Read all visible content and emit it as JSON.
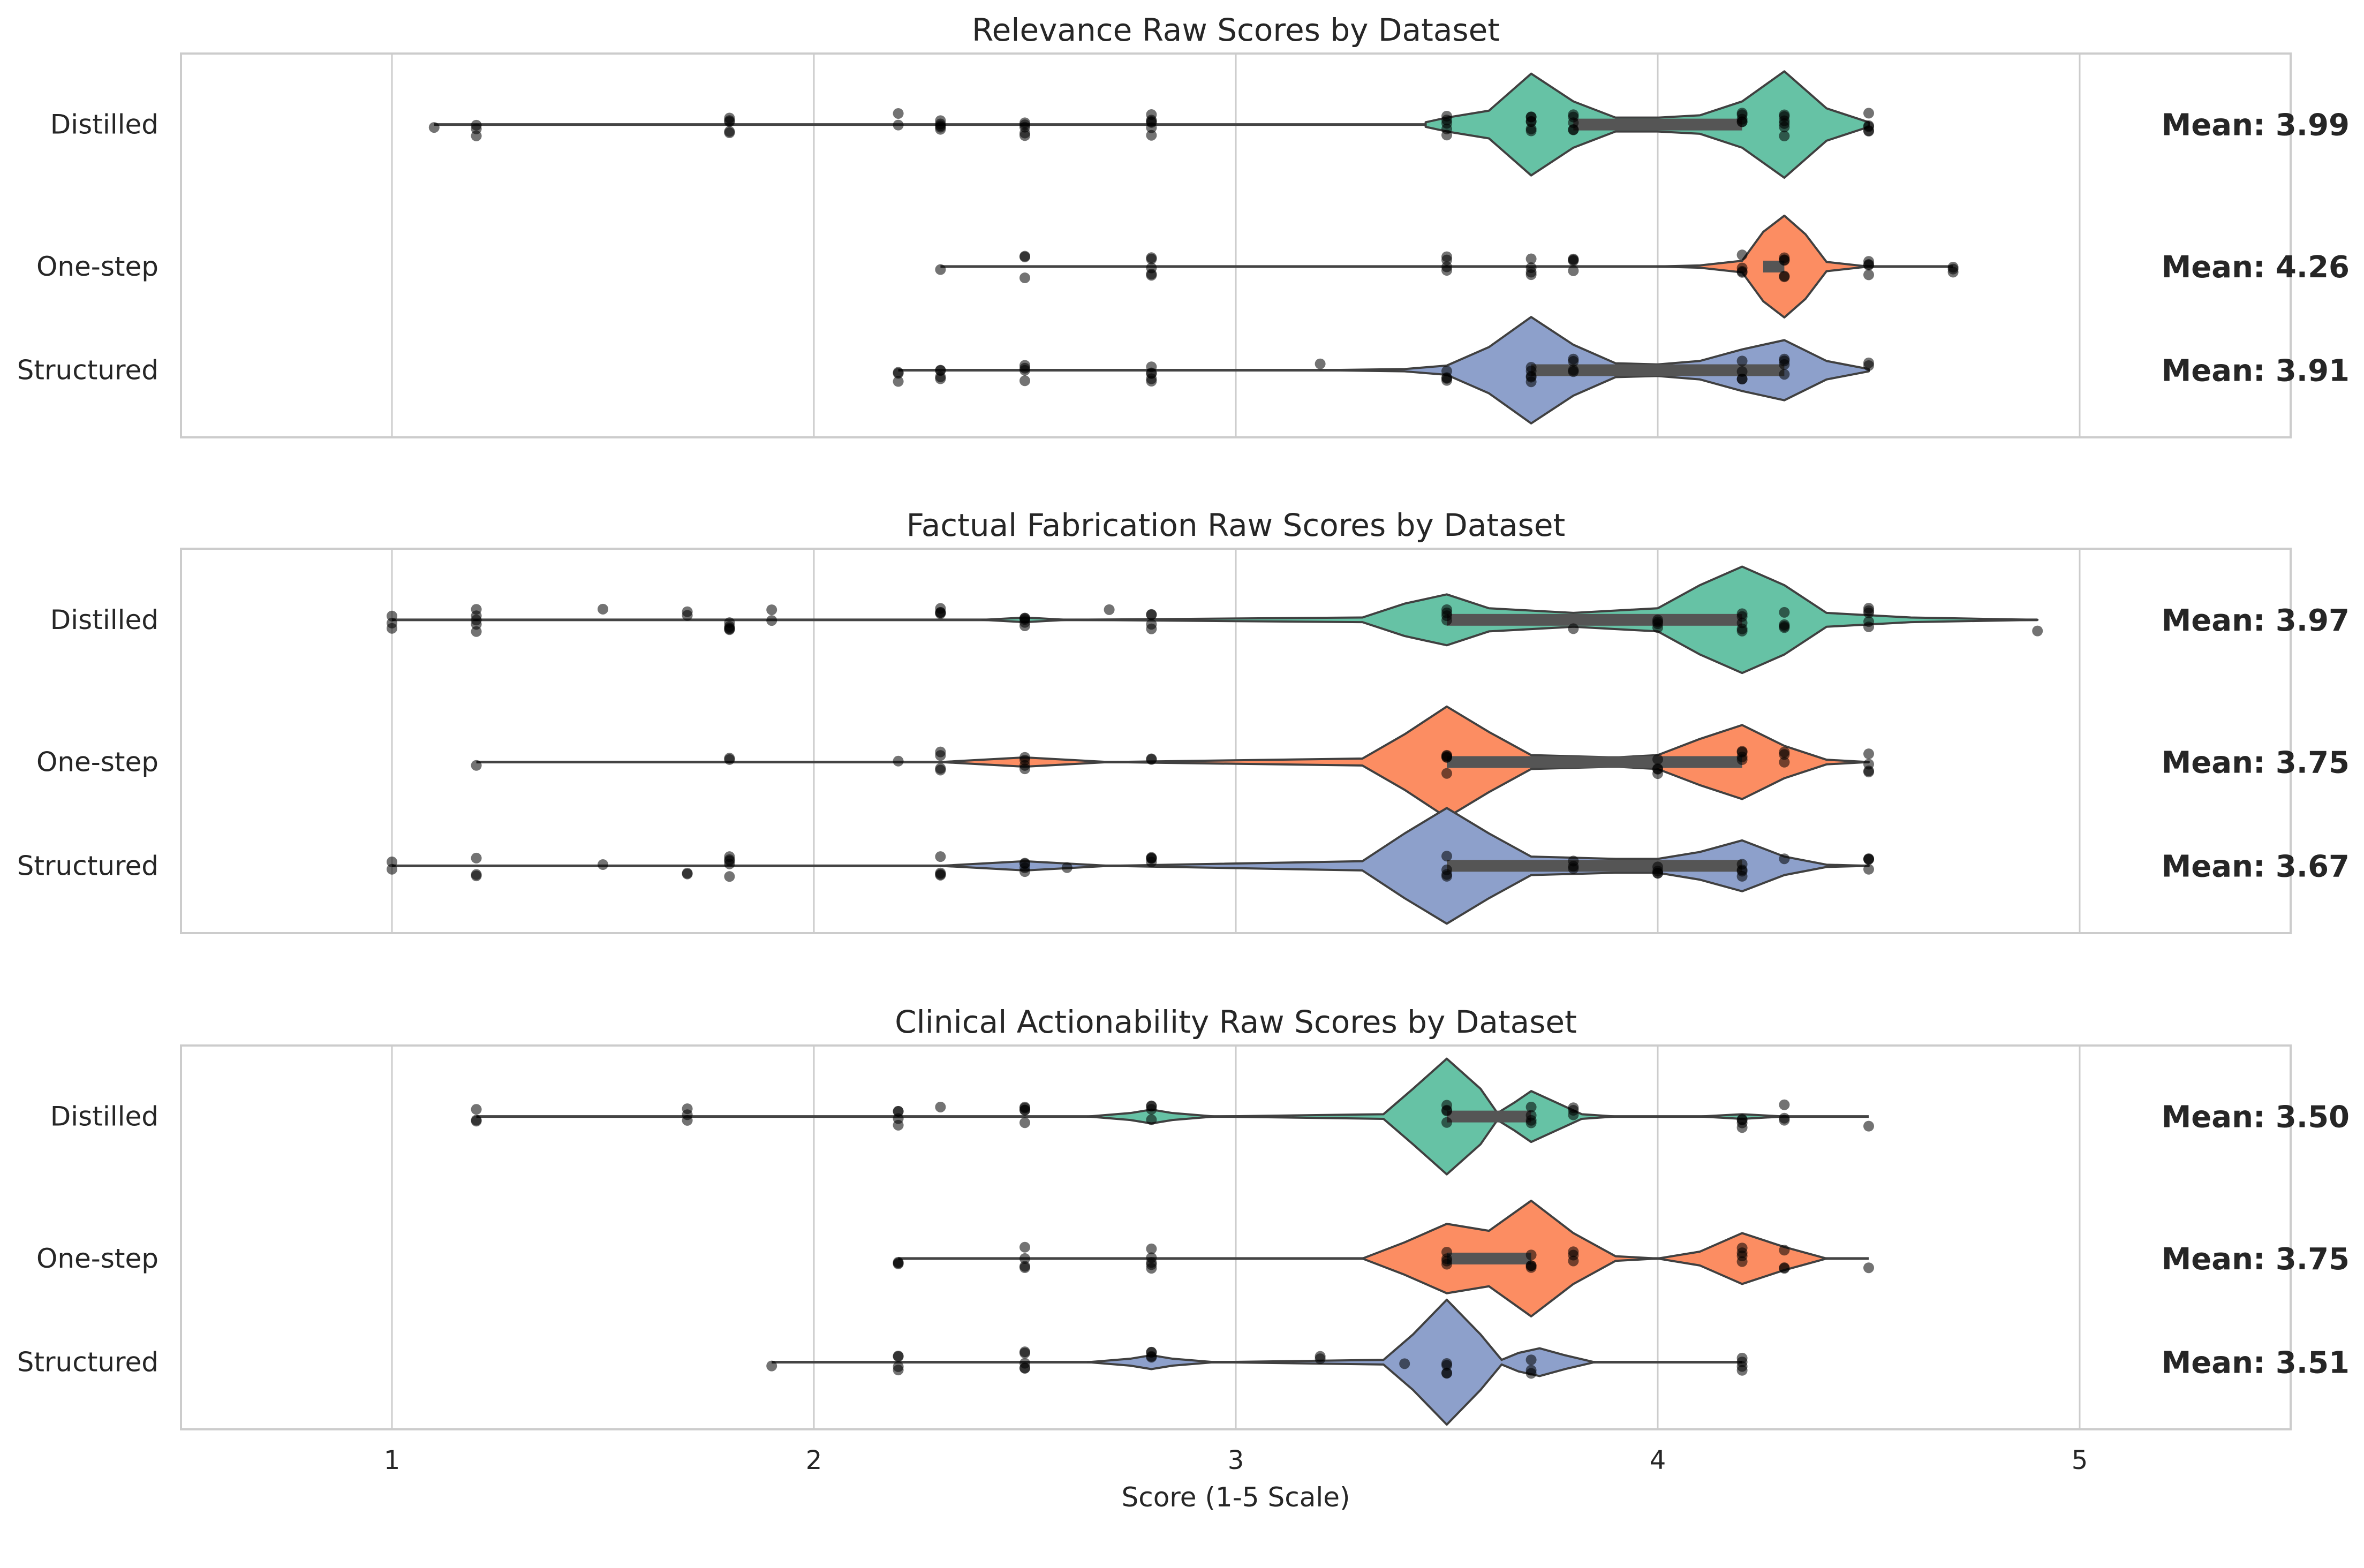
{
  "chart_data": [
    {
      "type": "violin",
      "title": "Relevance Raw Scores by Dataset",
      "categories": [
        "Distilled",
        "One-step",
        "Structured"
      ],
      "xlim": [
        0.5,
        5.5
      ],
      "xticks": [
        1,
        2,
        3,
        4,
        5
      ],
      "xlabel": "",
      "grid": true,
      "colors": [
        "#66c2a5",
        "#fc8d62",
        "#8da0cb"
      ],
      "series": [
        {
          "name": "Distilled",
          "mean": 3.99,
          "mean_label": "Mean: 3.99",
          "range": [
            1.1,
            4.5
          ],
          "iqr": [
            3.8,
            4.2
          ],
          "density": [
            [
              3.45,
              0.02
            ],
            [
              3.5,
              0.06
            ],
            [
              3.6,
              0.12
            ],
            [
              3.7,
              0.44
            ],
            [
              3.8,
              0.2
            ],
            [
              3.9,
              0.06
            ],
            [
              4.0,
              0.06
            ],
            [
              4.1,
              0.08
            ],
            [
              4.2,
              0.2
            ],
            [
              4.3,
              0.46
            ],
            [
              4.4,
              0.14
            ],
            [
              4.5,
              0.02
            ]
          ],
          "points": [
            1.1,
            1.2,
            1.2,
            1.2,
            1.8,
            1.8,
            1.8,
            1.8,
            1.8,
            2.2,
            2.2,
            2.3,
            2.3,
            2.3,
            2.3,
            2.3,
            2.5,
            2.5,
            2.5,
            2.5,
            2.5,
            2.8,
            2.8,
            2.8,
            2.8,
            2.8,
            2.8,
            3.5,
            3.5,
            3.5,
            3.5,
            3.5,
            3.7,
            3.7,
            3.7,
            3.7,
            3.7,
            3.7,
            3.8,
            3.8,
            3.8,
            3.8,
            3.8,
            4.2,
            4.2,
            4.2,
            4.2,
            4.2,
            4.3,
            4.3,
            4.3,
            4.3,
            4.3,
            4.3,
            4.5,
            4.5,
            4.5,
            4.5,
            4.5
          ]
        },
        {
          "name": "One-step",
          "mean": 4.26,
          "mean_label": "Mean: 4.26",
          "range": [
            2.3,
            4.7
          ],
          "iqr": [
            4.25,
            4.3
          ],
          "density": [
            [
              4.0,
              0.0
            ],
            [
              4.1,
              0.01
            ],
            [
              4.2,
              0.05
            ],
            [
              4.25,
              0.3
            ],
            [
              4.3,
              0.44
            ],
            [
              4.35,
              0.28
            ],
            [
              4.4,
              0.04
            ],
            [
              4.5,
              0.0
            ]
          ],
          "points": [
            2.3,
            2.5,
            2.5,
            2.5,
            2.8,
            2.8,
            2.8,
            2.8,
            2.8,
            3.5,
            3.5,
            3.5,
            3.5,
            3.7,
            3.7,
            3.7,
            3.7,
            3.8,
            3.8,
            3.8,
            3.8,
            4.2,
            4.2,
            4.2,
            4.2,
            4.3,
            4.3,
            4.3,
            4.3,
            4.3,
            4.5,
            4.5,
            4.5,
            4.5,
            4.7,
            4.7,
            4.7
          ]
        },
        {
          "name": "Structured",
          "mean": 3.91,
          "mean_label": "Mean: 3.91",
          "range": [
            2.2,
            4.5
          ],
          "iqr": [
            3.7,
            4.3
          ],
          "density": [
            [
              3.2,
              0.0
            ],
            [
              3.4,
              0.01
            ],
            [
              3.5,
              0.04
            ],
            [
              3.6,
              0.2
            ],
            [
              3.7,
              0.46
            ],
            [
              3.8,
              0.22
            ],
            [
              3.9,
              0.06
            ],
            [
              4.0,
              0.05
            ],
            [
              4.1,
              0.08
            ],
            [
              4.2,
              0.18
            ],
            [
              4.3,
              0.26
            ],
            [
              4.4,
              0.08
            ],
            [
              4.5,
              0.01
            ]
          ],
          "points": [
            2.2,
            2.2,
            2.2,
            2.3,
            2.3,
            2.3,
            2.3,
            2.5,
            2.5,
            2.5,
            2.5,
            2.8,
            2.8,
            2.8,
            2.8,
            2.8,
            3.2,
            3.5,
            3.5,
            3.5,
            3.5,
            3.7,
            3.7,
            3.7,
            3.7,
            3.7,
            3.8,
            3.8,
            3.8,
            3.8,
            4.2,
            4.2,
            4.2,
            4.2,
            4.3,
            4.3,
            4.3,
            4.3,
            4.5,
            4.5
          ]
        }
      ]
    },
    {
      "type": "violin",
      "title": "Factual Fabrication Raw Scores by Dataset",
      "categories": [
        "Distilled",
        "One-step",
        "Structured"
      ],
      "xlim": [
        0.5,
        5.5
      ],
      "xticks": [
        1,
        2,
        3,
        4,
        5
      ],
      "xlabel": "",
      "grid": true,
      "colors": [
        "#66c2a5",
        "#fc8d62",
        "#8da0cb"
      ],
      "series": [
        {
          "name": "Distilled",
          "mean": 3.97,
          "mean_label": "Mean: 3.97",
          "range": [
            1.0,
            4.9
          ],
          "iqr": [
            3.5,
            4.2
          ],
          "density": [
            [
              2.4,
              0.0
            ],
            [
              2.5,
              0.02
            ],
            [
              2.6,
              0.0
            ],
            [
              3.3,
              0.02
            ],
            [
              3.4,
              0.14
            ],
            [
              3.5,
              0.22
            ],
            [
              3.6,
              0.1
            ],
            [
              3.8,
              0.06
            ],
            [
              4.0,
              0.1
            ],
            [
              4.1,
              0.3
            ],
            [
              4.2,
              0.46
            ],
            [
              4.3,
              0.3
            ],
            [
              4.4,
              0.06
            ],
            [
              4.6,
              0.02
            ],
            [
              4.9,
              0.0
            ]
          ],
          "points": [
            1.0,
            1.0,
            1.0,
            1.2,
            1.2,
            1.2,
            1.2,
            1.2,
            1.5,
            1.7,
            1.7,
            1.8,
            1.8,
            1.8,
            1.8,
            1.8,
            1.9,
            1.9,
            2.3,
            2.3,
            2.3,
            2.3,
            2.5,
            2.5,
            2.5,
            2.5,
            2.5,
            2.7,
            2.8,
            2.8,
            2.8,
            2.8,
            3.5,
            3.5,
            3.5,
            3.5,
            3.8,
            4.0,
            4.0,
            4.0,
            4.0,
            4.2,
            4.2,
            4.2,
            4.2,
            4.2,
            4.3,
            4.3,
            4.3,
            4.3,
            4.5,
            4.5,
            4.5,
            4.5,
            4.5,
            4.9
          ]
        },
        {
          "name": "One-step",
          "mean": 3.75,
          "mean_label": "Mean: 3.75",
          "range": [
            1.2,
            4.5
          ],
          "iqr": [
            3.5,
            4.2
          ],
          "density": [
            [
              2.3,
              0.0
            ],
            [
              2.5,
              0.04
            ],
            [
              2.7,
              0.0
            ],
            [
              3.3,
              0.03
            ],
            [
              3.4,
              0.24
            ],
            [
              3.5,
              0.48
            ],
            [
              3.6,
              0.26
            ],
            [
              3.7,
              0.06
            ],
            [
              3.9,
              0.04
            ],
            [
              4.0,
              0.06
            ],
            [
              4.1,
              0.2
            ],
            [
              4.2,
              0.32
            ],
            [
              4.3,
              0.14
            ],
            [
              4.4,
              0.02
            ],
            [
              4.5,
              0.0
            ]
          ],
          "points": [
            1.2,
            1.8,
            1.8,
            2.2,
            2.3,
            2.3,
            2.3,
            2.3,
            2.5,
            2.5,
            2.5,
            2.5,
            2.8,
            2.8,
            3.5,
            3.5,
            3.5,
            3.5,
            3.5,
            4.0,
            4.0,
            4.0,
            4.0,
            4.2,
            4.2,
            4.2,
            4.2,
            4.3,
            4.3,
            4.3,
            4.5,
            4.5,
            4.5,
            4.5
          ]
        },
        {
          "name": "Structured",
          "mean": 3.67,
          "mean_label": "Mean: 3.67",
          "range": [
            1.0,
            4.5
          ],
          "iqr": [
            3.5,
            4.2
          ],
          "density": [
            [
              2.3,
              0.0
            ],
            [
              2.5,
              0.04
            ],
            [
              2.7,
              0.0
            ],
            [
              3.3,
              0.04
            ],
            [
              3.4,
              0.28
            ],
            [
              3.5,
              0.5
            ],
            [
              3.6,
              0.28
            ],
            [
              3.7,
              0.08
            ],
            [
              3.9,
              0.06
            ],
            [
              4.0,
              0.06
            ],
            [
              4.1,
              0.12
            ],
            [
              4.2,
              0.22
            ],
            [
              4.3,
              0.08
            ],
            [
              4.4,
              0.01
            ],
            [
              4.5,
              0.0
            ]
          ],
          "points": [
            1.0,
            1.0,
            1.2,
            1.2,
            1.2,
            1.5,
            1.7,
            1.7,
            1.8,
            1.8,
            1.8,
            1.8,
            1.8,
            2.3,
            2.3,
            2.3,
            2.3,
            2.5,
            2.5,
            2.5,
            2.5,
            2.6,
            2.8,
            2.8,
            2.8,
            2.8,
            3.5,
            3.5,
            3.5,
            3.5,
            3.8,
            3.8,
            3.8,
            4.0,
            4.0,
            4.0,
            4.0,
            4.2,
            4.2,
            4.2,
            4.2,
            4.3,
            4.5,
            4.5,
            4.5,
            4.5
          ]
        }
      ]
    },
    {
      "type": "violin",
      "title": "Clinical Actionability Raw Scores by Dataset",
      "categories": [
        "Distilled",
        "One-step",
        "Structured"
      ],
      "xlim": [
        0.5,
        5.5
      ],
      "xticks": [
        1,
        2,
        3,
        4,
        5
      ],
      "xlabel": "Score (1-5 Scale)",
      "grid": true,
      "colors": [
        "#66c2a5",
        "#fc8d62",
        "#8da0cb"
      ],
      "series": [
        {
          "name": "Distilled",
          "mean": 3.5,
          "mean_label": "Mean: 3.50",
          "range": [
            1.2,
            4.5
          ],
          "iqr": [
            3.5,
            3.7
          ],
          "density": [
            [
              2.65,
              0.0
            ],
            [
              2.75,
              0.03
            ],
            [
              2.8,
              0.06
            ],
            [
              2.85,
              0.03
            ],
            [
              2.95,
              0.0
            ],
            [
              3.35,
              0.02
            ],
            [
              3.42,
              0.24
            ],
            [
              3.5,
              0.5
            ],
            [
              3.58,
              0.24
            ],
            [
              3.62,
              0.03
            ],
            [
              3.66,
              0.12
            ],
            [
              3.7,
              0.22
            ],
            [
              3.76,
              0.12
            ],
            [
              3.82,
              0.02
            ],
            [
              3.9,
              0.0
            ],
            [
              4.1,
              0.0
            ],
            [
              4.2,
              0.02
            ],
            [
              4.3,
              0.0
            ]
          ],
          "points": [
            1.2,
            1.2,
            1.2,
            1.7,
            1.7,
            1.7,
            2.2,
            2.2,
            2.2,
            2.2,
            2.3,
            2.5,
            2.5,
            2.5,
            2.5,
            2.5,
            2.8,
            2.8,
            2.8,
            2.8,
            3.5,
            3.5,
            3.5,
            3.5,
            3.7,
            3.7,
            3.7,
            3.7,
            3.8,
            3.8,
            3.8,
            4.2,
            4.2,
            4.2,
            4.2,
            4.3,
            4.3,
            4.3,
            4.5
          ]
        },
        {
          "name": "One-step",
          "mean": 3.75,
          "mean_label": "Mean: 3.75",
          "range": [
            2.2,
            4.5
          ],
          "iqr": [
            3.5,
            3.7
          ],
          "density": [
            [
              3.3,
              0.0
            ],
            [
              3.4,
              0.14
            ],
            [
              3.5,
              0.3
            ],
            [
              3.6,
              0.24
            ],
            [
              3.7,
              0.5
            ],
            [
              3.8,
              0.22
            ],
            [
              3.9,
              0.02
            ],
            [
              4.0,
              0.0
            ],
            [
              4.1,
              0.06
            ],
            [
              4.2,
              0.22
            ],
            [
              4.3,
              0.1
            ],
            [
              4.4,
              0.0
            ]
          ],
          "points": [
            2.2,
            2.2,
            2.2,
            2.5,
            2.5,
            2.5,
            2.5,
            2.8,
            2.8,
            2.8,
            2.8,
            2.8,
            3.5,
            3.5,
            3.5,
            3.5,
            3.7,
            3.7,
            3.7,
            3.7,
            3.8,
            3.8,
            3.8,
            4.2,
            4.2,
            4.2,
            4.2,
            4.3,
            4.3,
            4.3,
            4.5
          ]
        },
        {
          "name": "Structured",
          "mean": 3.51,
          "mean_label": "Mean: 3.51",
          "range": [
            1.9,
            4.2
          ],
          "iqr": [
            3.5,
            3.5
          ],
          "density": [
            [
              2.65,
              0.0
            ],
            [
              2.75,
              0.03
            ],
            [
              2.8,
              0.06
            ],
            [
              2.85,
              0.03
            ],
            [
              2.95,
              0.0
            ],
            [
              3.35,
              0.02
            ],
            [
              3.42,
              0.24
            ],
            [
              3.5,
              0.54
            ],
            [
              3.58,
              0.24
            ],
            [
              3.63,
              0.02
            ],
            [
              3.67,
              0.08
            ],
            [
              3.72,
              0.12
            ],
            [
              3.78,
              0.06
            ],
            [
              3.85,
              0.0
            ]
          ],
          "points": [
            1.9,
            2.2,
            2.2,
            2.2,
            2.2,
            2.5,
            2.5,
            2.5,
            2.5,
            2.5,
            2.8,
            2.8,
            2.8,
            2.8,
            3.2,
            3.2,
            3.4,
            3.5,
            3.5,
            3.5,
            3.5,
            3.7,
            3.7,
            3.7,
            4.2,
            4.2,
            4.2,
            4.2
          ]
        }
      ]
    }
  ]
}
